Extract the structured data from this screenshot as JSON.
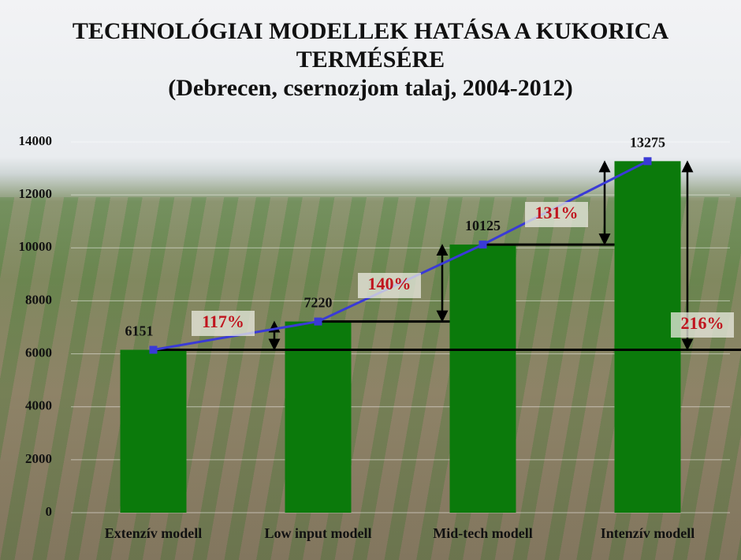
{
  "chart_data": {
    "type": "bar",
    "title": "TECHNOLÓGIAI  MODELLEK HATÁSA  A KUKORICA TERMÉSÉRE",
    "subtitle": "(Debrecen, csernozjom  talaj, 2004-2012)",
    "categories": [
      "Extenzív modell",
      "Low input modell",
      "Mid-tech modell",
      "Intenzív modell"
    ],
    "values": [
      6151,
      7220,
      10125,
      13275
    ],
    "color": "#0b7a0b",
    "line_color": "#3a3ad6",
    "ylim": [
      0,
      14000
    ],
    "yticks": [
      0,
      2000,
      4000,
      6000,
      8000,
      10000,
      12000,
      14000
    ],
    "grid": true,
    "annotations": [
      "117%",
      "140%",
      "131%",
      "216%"
    ]
  }
}
